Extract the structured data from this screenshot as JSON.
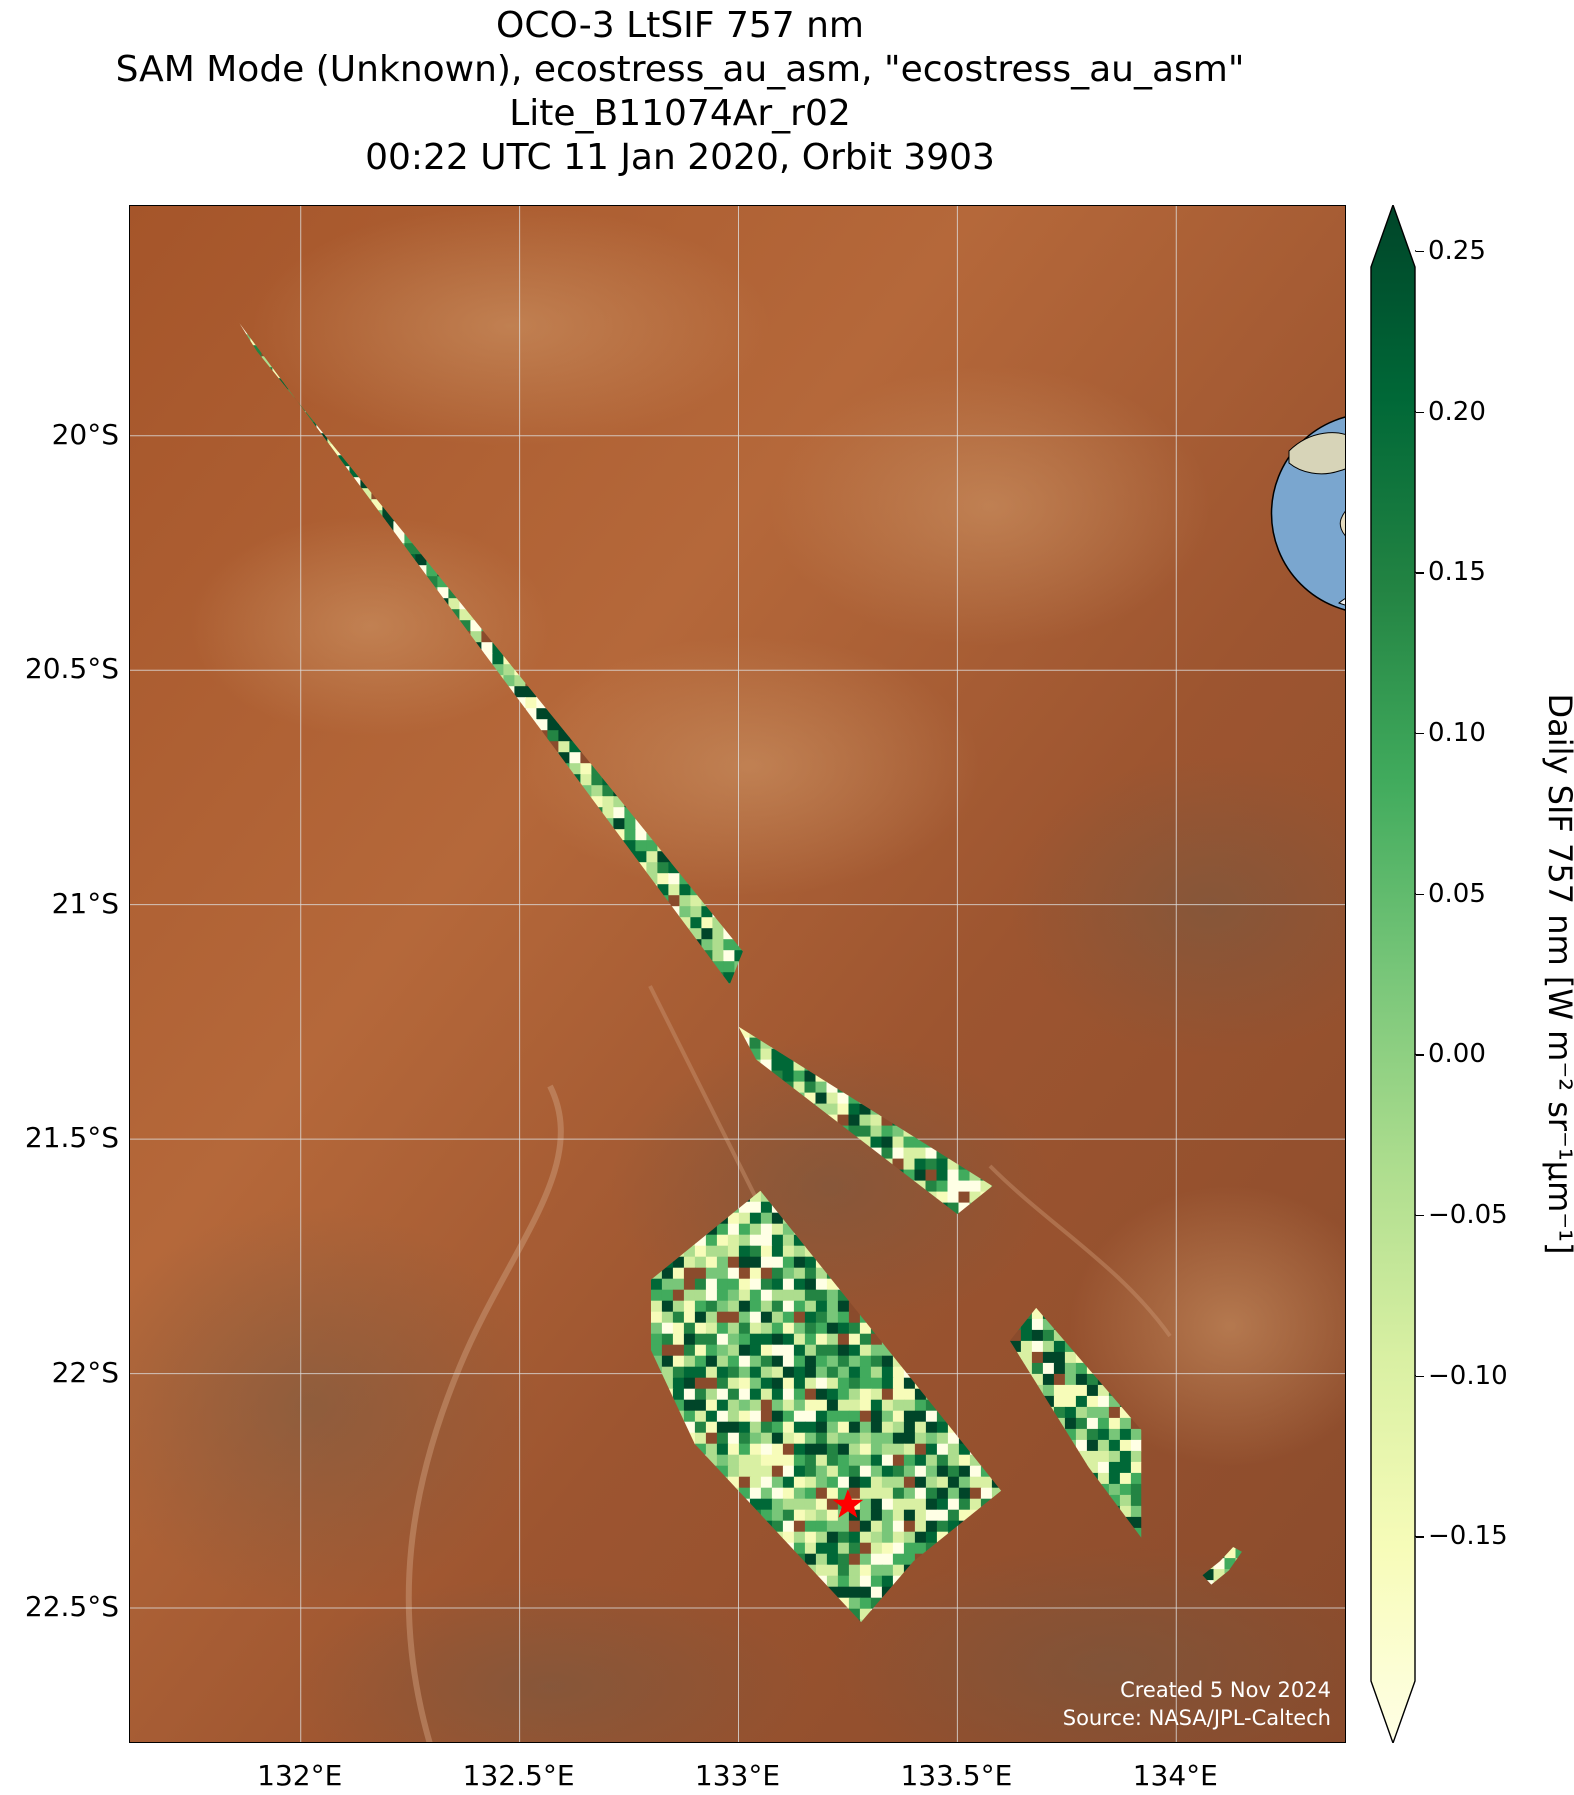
{
  "title": {
    "line1": "OCO-3 LtSIF 757 nm",
    "line2": "SAM Mode (Unknown), ecostress_au_asm, \"ecostress_au_asm\"",
    "line3": "Lite_B11074Ar_r02",
    "line4": "00:22 UTC 11 Jan 2020, Orbit 3903"
  },
  "axes": {
    "lat_labels": [
      "20°S",
      "20.5°S",
      "21°S",
      "21.5°S",
      "22°S",
      "22.5°S"
    ],
    "lat_values": [
      -20.0,
      -20.5,
      -21.0,
      -21.5,
      -22.0,
      -22.5
    ],
    "lon_labels": [
      "132°E",
      "132.5°E",
      "133°E",
      "133.5°E",
      "134°E"
    ],
    "lon_values": [
      132.0,
      132.5,
      133.0,
      133.5,
      134.0
    ],
    "lon_range": [
      131.61,
      134.39
    ],
    "lat_range": [
      -22.79,
      -19.51
    ],
    "grid": true
  },
  "colorbar": {
    "label": "Daily SIF 757 nm [W m⁻² sr⁻¹μm⁻¹]",
    "tick_labels": [
      "0.25",
      "0.20",
      "0.15",
      "0.10",
      "0.05",
      "0.00",
      "−0.05",
      "−0.10",
      "−0.15"
    ],
    "tick_values": [
      0.25,
      0.2,
      0.15,
      0.1,
      0.05,
      0.0,
      -0.05,
      -0.1,
      -0.15
    ],
    "range": [
      -0.195,
      0.245
    ],
    "extend": "both",
    "colormap": "YlGn"
  },
  "target_site": {
    "lon": 133.25,
    "lat": -22.28,
    "marker": "red-star",
    "color": "#ff0000"
  },
  "inset_globe": {
    "ocean_color": "#7aa6cf",
    "land_color": "#e6dcc0",
    "marker_color": "#ff0000"
  },
  "credits": {
    "created": "Created 5 Nov 2024",
    "source": "Source: NASA/JPL-Caltech"
  },
  "swaths": [
    {
      "corners_lonlat": [
        [
          131.86,
          -19.76
        ],
        [
          131.9,
          -19.82
        ],
        [
          133.01,
          -21.1
        ],
        [
          132.98,
          -21.17
        ]
      ],
      "width_lon": 0.1
    },
    {
      "corners_lonlat": [
        [
          133.0,
          -21.26
        ],
        [
          133.58,
          -21.6
        ],
        [
          133.5,
          -21.66
        ],
        [
          133.04,
          -21.33
        ]
      ],
      "width_lon": 0.09
    },
    {
      "corners_lonlat": [
        [
          132.8,
          -21.8
        ],
        [
          133.05,
          -21.61
        ],
        [
          133.6,
          -22.25
        ],
        [
          133.4,
          -22.4
        ],
        [
          133.28,
          -22.53
        ],
        [
          132.9,
          -22.15
        ],
        [
          132.8,
          -21.95
        ]
      ]
    },
    {
      "corners_lonlat": [
        [
          133.62,
          -21.93
        ],
        [
          133.68,
          -21.86
        ],
        [
          133.92,
          -22.12
        ],
        [
          133.92,
          -22.35
        ],
        [
          133.8,
          -22.2
        ]
      ]
    },
    {
      "corners_lonlat": [
        [
          134.08,
          -22.45
        ],
        [
          134.12,
          -22.42
        ],
        [
          134.15,
          -22.38
        ],
        [
          134.13,
          -22.37
        ],
        [
          134.1,
          -22.4
        ],
        [
          134.06,
          -22.43
        ]
      ]
    }
  ]
}
